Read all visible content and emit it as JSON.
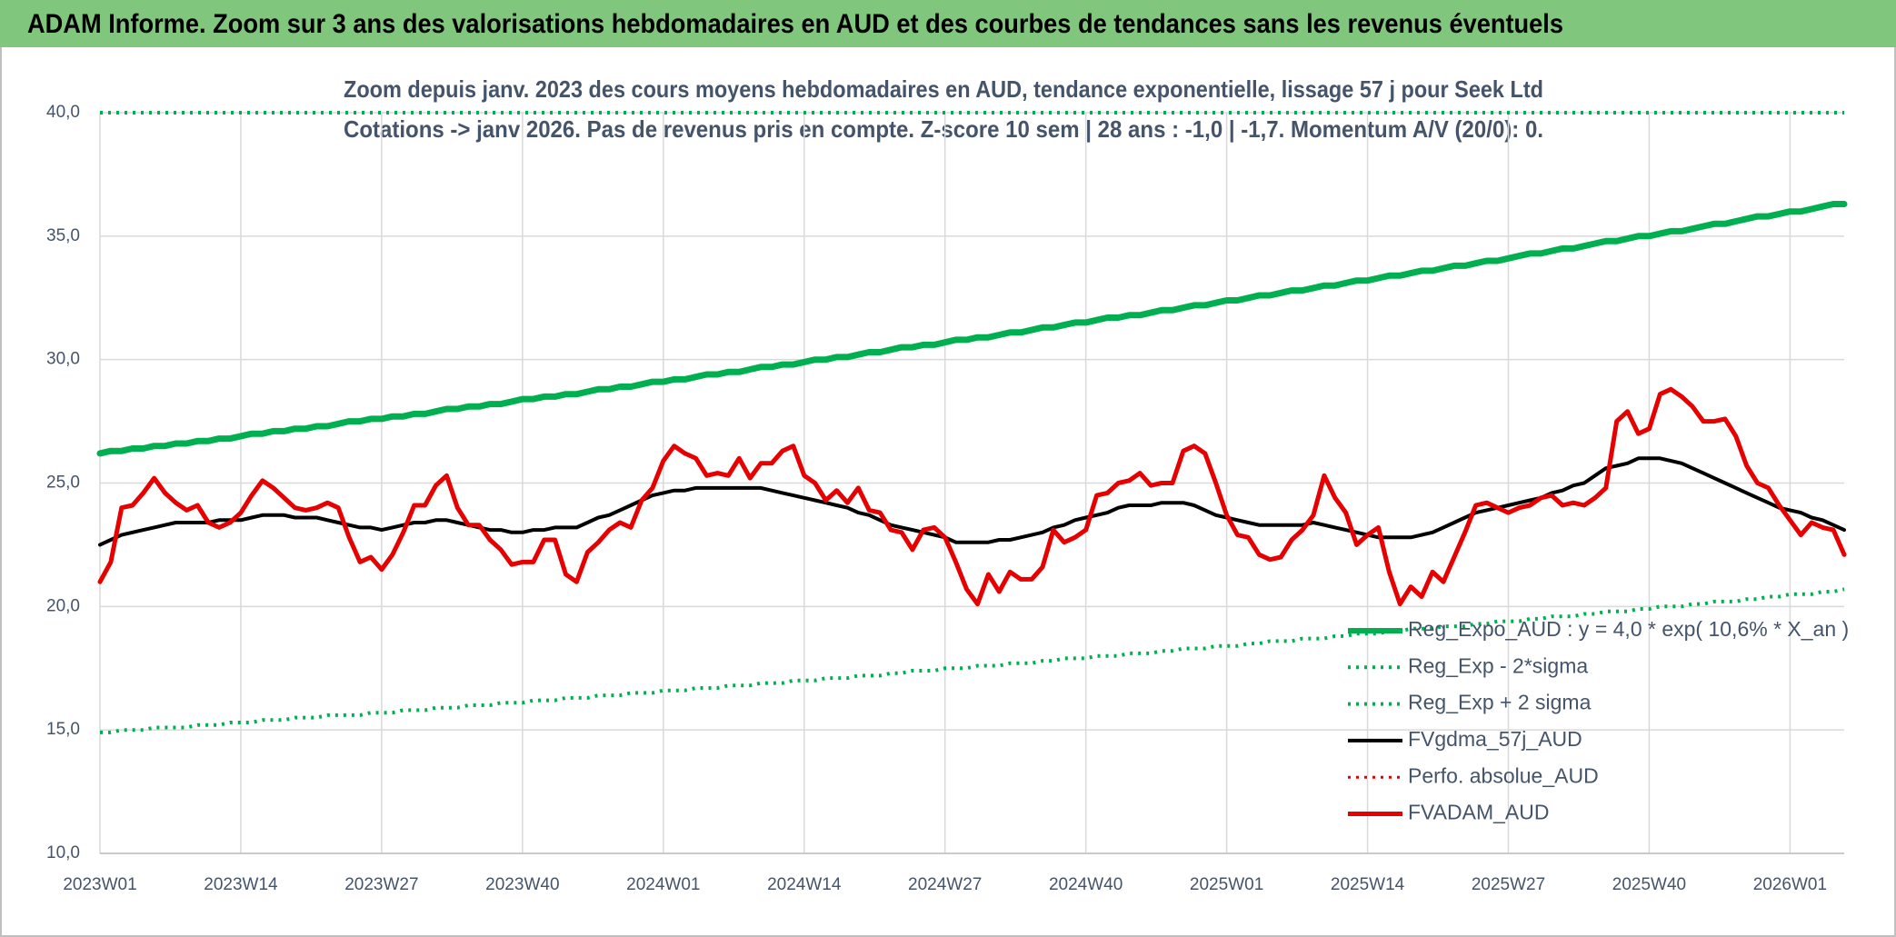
{
  "chart_data": {
    "type": "line",
    "title": "ADAM Informe. Zoom sur 3 ans des valorisations hebdomadaires en AUD et des courbes de tendances sans les revenus éventuels",
    "subtitle": [
      "Zoom depuis janv. 2023 des cours moyens hebdomadaires en AUD, tendance exponentielle, lissage 57 j pour Seek Ltd",
      "Cotations -> janv 2026. Pas de revenus pris en compte. Z-score 10 sem | 28 ans : -1,0 | -1,7. Momentum A/V (20/0): 0."
    ],
    "categories": [
      "2023W01",
      null,
      null,
      null,
      null,
      null,
      null,
      null,
      null,
      null,
      null,
      null,
      null,
      "2023W14",
      null,
      null,
      null,
      null,
      null,
      null,
      null,
      null,
      null,
      null,
      null,
      null,
      "2023W27",
      null,
      null,
      null,
      null,
      null,
      null,
      null,
      null,
      null,
      null,
      null,
      null,
      "2023W40",
      null,
      null,
      null,
      null,
      null,
      null,
      null,
      null,
      null,
      null,
      null,
      null,
      "2024W01",
      null,
      null,
      null,
      null,
      null,
      null,
      null,
      null,
      null,
      null,
      null,
      null,
      "2024W14",
      null,
      null,
      null,
      null,
      null,
      null,
      null,
      null,
      null,
      null,
      null,
      null,
      "2024W27",
      null,
      null,
      null,
      null,
      null,
      null,
      null,
      null,
      null,
      null,
      null,
      null,
      "2024W40",
      null,
      null,
      null,
      null,
      null,
      null,
      null,
      null,
      null,
      null,
      null,
      null,
      "2025W01",
      null,
      null,
      null,
      null,
      null,
      null,
      null,
      null,
      null,
      null,
      null,
      null,
      "2025W14",
      null,
      null,
      null,
      null,
      null,
      null,
      null,
      null,
      null,
      null,
      null,
      null,
      "2025W27",
      null,
      null,
      null,
      null,
      null,
      null,
      null,
      null,
      null,
      null,
      null,
      null,
      "2025W40",
      null,
      null,
      null,
      null,
      null,
      null,
      null,
      null,
      null,
      null,
      null,
      null,
      "2026W01",
      null,
      null,
      null,
      null,
      null
    ],
    "series": [
      {
        "name": "Reg_Expo_AUD : y = 4,0 * exp( 10,6% *  X_an )",
        "color": "#00b050",
        "line_style": "solid",
        "width": 7,
        "values": [
          26.2,
          26.3,
          26.3,
          26.4,
          26.4,
          26.5,
          26.5,
          26.6,
          26.6,
          26.7,
          26.7,
          26.8,
          26.8,
          26.9,
          27.0,
          27.0,
          27.1,
          27.1,
          27.2,
          27.2,
          27.3,
          27.3,
          27.4,
          27.5,
          27.5,
          27.6,
          27.6,
          27.7,
          27.7,
          27.8,
          27.8,
          27.9,
          28.0,
          28.0,
          28.1,
          28.1,
          28.2,
          28.2,
          28.3,
          28.4,
          28.4,
          28.5,
          28.5,
          28.6,
          28.6,
          28.7,
          28.8,
          28.8,
          28.9,
          28.9,
          29.0,
          29.1,
          29.1,
          29.2,
          29.2,
          29.3,
          29.4,
          29.4,
          29.5,
          29.5,
          29.6,
          29.7,
          29.7,
          29.8,
          29.8,
          29.9,
          30.0,
          30.0,
          30.1,
          30.1,
          30.2,
          30.3,
          30.3,
          30.4,
          30.5,
          30.5,
          30.6,
          30.6,
          30.7,
          30.8,
          30.8,
          30.9,
          30.9,
          31.0,
          31.1,
          31.1,
          31.2,
          31.3,
          31.3,
          31.4,
          31.5,
          31.5,
          31.6,
          31.7,
          31.7,
          31.8,
          31.8,
          31.9,
          32.0,
          32.0,
          32.1,
          32.2,
          32.2,
          32.3,
          32.4,
          32.4,
          32.5,
          32.6,
          32.6,
          32.7,
          32.8,
          32.8,
          32.9,
          33.0,
          33.0,
          33.1,
          33.2,
          33.2,
          33.3,
          33.4,
          33.4,
          33.5,
          33.6,
          33.6,
          33.7,
          33.8,
          33.8,
          33.9,
          34.0,
          34.0,
          34.1,
          34.2,
          34.3,
          34.3,
          34.4,
          34.5,
          34.5,
          34.6,
          34.7,
          34.8,
          34.8,
          34.9,
          35.0,
          35.0,
          35.1,
          35.2,
          35.2,
          35.3,
          35.4,
          35.5,
          35.5,
          35.6,
          35.7,
          35.8,
          35.8,
          35.9,
          36.0,
          36.0,
          36.1,
          36.2,
          36.3,
          36.3
        ]
      },
      {
        "name": "Reg_Exp - 2*sigma",
        "color": "#00b050",
        "line_style": "dotted",
        "width": 4,
        "values": [
          14.9,
          14.9,
          15.0,
          15.0,
          15.0,
          15.1,
          15.1,
          15.1,
          15.1,
          15.2,
          15.2,
          15.2,
          15.3,
          15.3,
          15.3,
          15.4,
          15.4,
          15.4,
          15.5,
          15.5,
          15.5,
          15.6,
          15.6,
          15.6,
          15.6,
          15.7,
          15.7,
          15.7,
          15.8,
          15.8,
          15.8,
          15.9,
          15.9,
          15.9,
          16.0,
          16.0,
          16.0,
          16.1,
          16.1,
          16.1,
          16.2,
          16.2,
          16.2,
          16.3,
          16.3,
          16.3,
          16.4,
          16.4,
          16.4,
          16.5,
          16.5,
          16.5,
          16.6,
          16.6,
          16.6,
          16.7,
          16.7,
          16.7,
          16.8,
          16.8,
          16.8,
          16.9,
          16.9,
          16.9,
          17.0,
          17.0,
          17.0,
          17.1,
          17.1,
          17.1,
          17.2,
          17.2,
          17.2,
          17.3,
          17.3,
          17.4,
          17.4,
          17.4,
          17.5,
          17.5,
          17.5,
          17.6,
          17.6,
          17.6,
          17.7,
          17.7,
          17.7,
          17.8,
          17.8,
          17.9,
          17.9,
          17.9,
          18.0,
          18.0,
          18.0,
          18.1,
          18.1,
          18.1,
          18.2,
          18.2,
          18.3,
          18.3,
          18.3,
          18.4,
          18.4,
          18.4,
          18.5,
          18.5,
          18.6,
          18.6,
          18.6,
          18.7,
          18.7,
          18.7,
          18.8,
          18.8,
          18.9,
          18.9,
          18.9,
          19.0,
          19.0,
          19.1,
          19.1,
          19.1,
          19.2,
          19.2,
          19.2,
          19.3,
          19.3,
          19.4,
          19.4,
          19.4,
          19.5,
          19.5,
          19.6,
          19.6,
          19.6,
          19.7,
          19.7,
          19.8,
          19.8,
          19.8,
          19.9,
          19.9,
          20.0,
          20.0,
          20.0,
          20.1,
          20.1,
          20.2,
          20.2,
          20.2,
          20.3,
          20.3,
          20.4,
          20.4,
          20.5,
          20.5,
          20.5,
          20.6,
          20.6,
          20.7
        ]
      },
      {
        "name": "Reg_Exp + 2 sigma",
        "color": "#00b050",
        "line_style": "dotted",
        "width": 4,
        "values": [
          40,
          40,
          40,
          40,
          40,
          40,
          40,
          40,
          40,
          40,
          40,
          40,
          40,
          40,
          40,
          40,
          40,
          40,
          40,
          40,
          40,
          40,
          40,
          40,
          40,
          40,
          40,
          40,
          40,
          40,
          40,
          40,
          40,
          40,
          40,
          40,
          40,
          40,
          40,
          40,
          40,
          40,
          40,
          40,
          40,
          40,
          40,
          40,
          40,
          40,
          40,
          40,
          40,
          40,
          40,
          40,
          40,
          40,
          40,
          40,
          40,
          40,
          40,
          40,
          40,
          40,
          40,
          40,
          40,
          40,
          40,
          40,
          40,
          40,
          40,
          40,
          40,
          40,
          40,
          40,
          40,
          40,
          40,
          40,
          40,
          40,
          40,
          40,
          40,
          40,
          40,
          40,
          40,
          40,
          40,
          40,
          40,
          40,
          40,
          40,
          40,
          40,
          40,
          40,
          40,
          40,
          40,
          40,
          40,
          40,
          40,
          40,
          40,
          40,
          40,
          40,
          40,
          40,
          40,
          40,
          40,
          40,
          40,
          40,
          40,
          40,
          40,
          40,
          40,
          40,
          40,
          40,
          40,
          40,
          40,
          40,
          40,
          40,
          40,
          40,
          40,
          40,
          40,
          40,
          40,
          40,
          40,
          40,
          40,
          40,
          40,
          40,
          40,
          40,
          40,
          40,
          40,
          40,
          40,
          40,
          40,
          40
        ]
      },
      {
        "name": "FVgdma_57j_AUD",
        "color": "#000000",
        "line_style": "solid",
        "width": 4,
        "values": [
          22.5,
          22.7,
          22.9,
          23.0,
          23.1,
          23.2,
          23.3,
          23.4,
          23.4,
          23.4,
          23.4,
          23.5,
          23.5,
          23.5,
          23.6,
          23.7,
          23.7,
          23.7,
          23.6,
          23.6,
          23.6,
          23.5,
          23.4,
          23.3,
          23.2,
          23.2,
          23.1,
          23.2,
          23.3,
          23.4,
          23.4,
          23.5,
          23.5,
          23.4,
          23.3,
          23.2,
          23.1,
          23.1,
          23.0,
          23.0,
          23.1,
          23.1,
          23.2,
          23.2,
          23.2,
          23.4,
          23.6,
          23.7,
          23.9,
          24.1,
          24.3,
          24.5,
          24.6,
          24.7,
          24.7,
          24.8,
          24.8,
          24.8,
          24.8,
          24.8,
          24.8,
          24.8,
          24.7,
          24.6,
          24.5,
          24.4,
          24.3,
          24.2,
          24.1,
          24.0,
          23.8,
          23.7,
          23.5,
          23.3,
          23.2,
          23.1,
          23.0,
          22.9,
          22.8,
          22.6,
          22.6,
          22.6,
          22.6,
          22.7,
          22.7,
          22.8,
          22.9,
          23.0,
          23.2,
          23.3,
          23.5,
          23.6,
          23.7,
          23.8,
          24.0,
          24.1,
          24.1,
          24.1,
          24.2,
          24.2,
          24.2,
          24.1,
          23.9,
          23.7,
          23.6,
          23.5,
          23.4,
          23.3,
          23.3,
          23.3,
          23.3,
          23.3,
          23.4,
          23.3,
          23.2,
          23.1,
          23.0,
          22.9,
          22.8,
          22.8,
          22.8,
          22.8,
          22.9,
          23.0,
          23.2,
          23.4,
          23.6,
          23.8,
          23.9,
          24.0,
          24.1,
          24.2,
          24.3,
          24.4,
          24.6,
          24.7,
          24.9,
          25.0,
          25.3,
          25.6,
          25.7,
          25.8,
          26.0,
          26.0,
          26.0,
          25.9,
          25.8,
          25.6,
          25.4,
          25.2,
          25.0,
          24.8,
          24.6,
          24.4,
          24.2,
          24.0,
          23.9,
          23.8,
          23.6,
          23.5,
          23.3,
          23.1
        ]
      },
      {
        "name": "Perfo. absolue_AUD",
        "color": "#e00000",
        "line_style": "dotted",
        "width": 3,
        "values": [
          null,
          null,
          null,
          null,
          null,
          null,
          null,
          null,
          null,
          null,
          null,
          null,
          null,
          null,
          null,
          null,
          null,
          null,
          null,
          null,
          null,
          null,
          null,
          null,
          null,
          null,
          null,
          null,
          null,
          null,
          null,
          null,
          null,
          null,
          null,
          null,
          null,
          null,
          null,
          null,
          null,
          null,
          null,
          null,
          null,
          null,
          null,
          null,
          null,
          null,
          null,
          null,
          null,
          null,
          null,
          null,
          null,
          null,
          null,
          null,
          null,
          null,
          null,
          null,
          null,
          null,
          null,
          null,
          null,
          null,
          null,
          null,
          null,
          null,
          null,
          null,
          null,
          null,
          null,
          null,
          null,
          null,
          null,
          null,
          null,
          null,
          null,
          null,
          null,
          null,
          null,
          null,
          null,
          null,
          null,
          null,
          null,
          null,
          null,
          null,
          null,
          null,
          null,
          null,
          null,
          null,
          null,
          null,
          null,
          null,
          null,
          null,
          null,
          null,
          null,
          null,
          null,
          null,
          null,
          null,
          null,
          null,
          null,
          null,
          null,
          null,
          null,
          null,
          null,
          null,
          null,
          null,
          null,
          null,
          null,
          null,
          null,
          null,
          null,
          null,
          null,
          null,
          null,
          null,
          null,
          null,
          null,
          null,
          null,
          null,
          null,
          null,
          null,
          null,
          null,
          null,
          null,
          null,
          null,
          null,
          null,
          null
        ]
      },
      {
        "name": "FVADAM_AUD",
        "color": "#e60000",
        "line_style": "solid",
        "width": 5,
        "values": [
          21.0,
          21.8,
          24.0,
          24.1,
          24.6,
          25.2,
          24.6,
          24.2,
          23.9,
          24.1,
          23.4,
          23.2,
          23.4,
          23.8,
          24.5,
          25.1,
          24.8,
          24.4,
          24.0,
          23.9,
          24.0,
          24.2,
          24.0,
          22.8,
          21.8,
          22.0,
          21.5,
          22.1,
          23.0,
          24.1,
          24.1,
          24.9,
          25.3,
          24.0,
          23.3,
          23.3,
          22.7,
          22.3,
          21.7,
          21.8,
          21.8,
          22.7,
          22.7,
          21.3,
          21.0,
          22.2,
          22.6,
          23.1,
          23.4,
          23.2,
          24.3,
          24.8,
          25.9,
          26.5,
          26.2,
          26.0,
          25.3,
          25.4,
          25.3,
          26.0,
          25.2,
          25.8,
          25.8,
          26.3,
          26.5,
          25.3,
          25.0,
          24.3,
          24.7,
          24.2,
          24.8,
          23.9,
          23.8,
          23.1,
          23.0,
          22.3,
          23.1,
          23.2,
          22.8,
          21.8,
          20.7,
          20.1,
          21.3,
          20.6,
          21.4,
          21.1,
          21.1,
          21.6,
          23.1,
          22.6,
          22.8,
          23.1,
          24.5,
          24.6,
          25.0,
          25.1,
          25.4,
          24.9,
          25.0,
          25.0,
          26.3,
          26.5,
          26.2,
          25.0,
          23.7,
          22.9,
          22.8,
          22.1,
          21.9,
          22.0,
          22.7,
          23.1,
          23.7,
          25.3,
          24.4,
          23.8,
          22.5,
          22.9,
          23.2,
          21.4,
          20.1,
          20.8,
          20.4,
          21.4,
          21.0,
          22.0,
          23.0,
          24.1,
          24.2,
          24.0,
          23.8,
          24.0,
          24.1,
          24.4,
          24.5,
          24.1,
          24.2,
          24.1,
          24.4,
          24.8,
          27.5,
          27.9,
          27.0,
          27.2,
          28.6,
          28.8,
          28.5,
          28.1,
          27.5,
          27.5,
          27.6,
          26.9,
          25.7,
          25.0,
          24.8,
          24.1,
          23.5,
          22.9,
          23.4,
          23.2,
          23.1,
          22.1
        ]
      }
    ],
    "ylim": [
      10,
      40
    ],
    "yticks": [
      {
        "value": 10,
        "label": "10,0"
      },
      {
        "value": 15,
        "label": "15,0"
      },
      {
        "value": 20,
        "label": "20,0"
      },
      {
        "value": 25,
        "label": "25,0"
      },
      {
        "value": 30,
        "label": "30,0"
      },
      {
        "value": 35,
        "label": "35,0"
      },
      {
        "value": 40,
        "label": "40,0"
      }
    ],
    "grid": true,
    "legend": "lower right"
  }
}
